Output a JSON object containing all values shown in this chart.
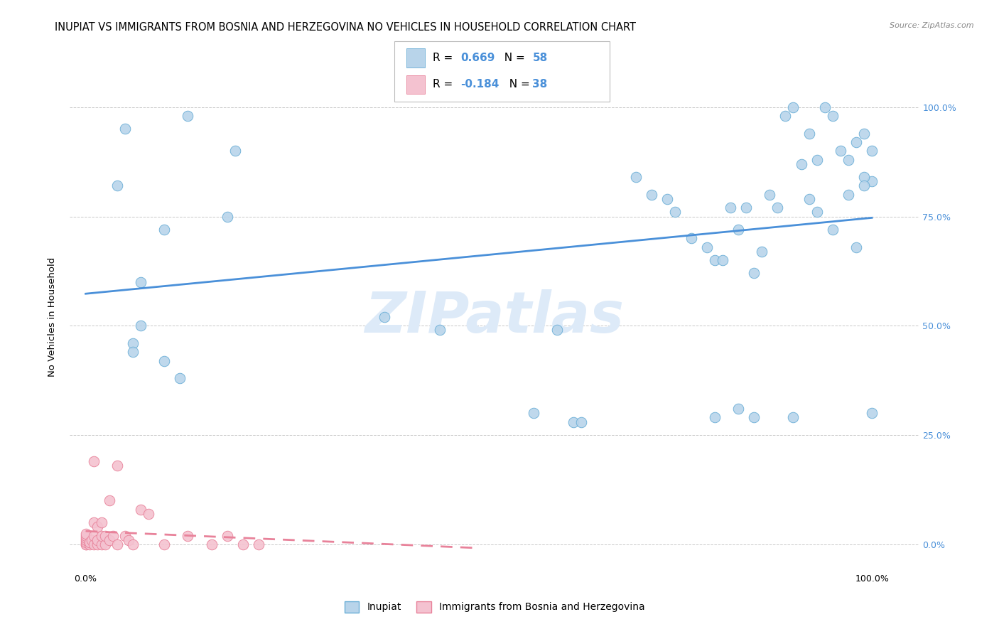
{
  "title": "INUPIAT VS IMMIGRANTS FROM BOSNIA AND HERZEGOVINA NO VEHICLES IN HOUSEHOLD CORRELATION CHART",
  "source": "Source: ZipAtlas.com",
  "ylabel": "No Vehicles in Household",
  "r_inupiat": 0.669,
  "n_inupiat": 58,
  "r_bosnia": -0.184,
  "n_bosnia": 38,
  "background_color": "#ffffff",
  "grid_color": "#c8c8c8",
  "inupiat_dot_color": "#b8d4ea",
  "inupiat_edge_color": "#6aaed6",
  "inupiat_line_color": "#4a90d9",
  "bosnia_dot_color": "#f4c2d0",
  "bosnia_edge_color": "#e8829a",
  "bosnia_line_color": "#e8829a",
  "right_tick_color": "#4a90d9",
  "watermark": "ZIPatlas",
  "watermark_color": "#ddeaf8",
  "ytick_values": [
    0.0,
    0.25,
    0.5,
    0.75,
    1.0
  ],
  "ytick_labels": [
    "0.0%",
    "25.0%",
    "50.0%",
    "75.0%",
    "100.0%"
  ],
  "xtick_values": [
    0.0,
    1.0
  ],
  "xtick_labels": [
    "0.0%",
    "100.0%"
  ],
  "inupiat_x": [
    0.05,
    0.13,
    0.04,
    0.19,
    0.18,
    0.1,
    0.07,
    0.07,
    0.06,
    0.06,
    0.1,
    0.12,
    0.38,
    0.45,
    0.6,
    0.57,
    0.62,
    0.63,
    0.7,
    0.72,
    0.74,
    0.75,
    0.77,
    0.79,
    0.8,
    0.81,
    0.82,
    0.83,
    0.84,
    0.85,
    0.86,
    0.87,
    0.88,
    0.89,
    0.9,
    0.91,
    0.92,
    0.93,
    0.94,
    0.95,
    0.96,
    0.97,
    0.98,
    0.99,
    1.0,
    1.0,
    0.8,
    0.83,
    0.85,
    0.9,
    0.92,
    0.93,
    0.95,
    0.97,
    0.98,
    0.99,
    0.99,
    1.0
  ],
  "inupiat_y": [
    0.95,
    0.98,
    0.82,
    0.9,
    0.75,
    0.72,
    0.6,
    0.5,
    0.46,
    0.44,
    0.42,
    0.38,
    0.52,
    0.49,
    0.49,
    0.3,
    0.28,
    0.28,
    0.84,
    0.8,
    0.79,
    0.76,
    0.7,
    0.68,
    0.65,
    0.65,
    0.77,
    0.72,
    0.77,
    0.62,
    0.67,
    0.8,
    0.77,
    0.98,
    1.0,
    0.87,
    0.94,
    0.88,
    1.0,
    0.98,
    0.9,
    0.88,
    0.92,
    0.94,
    0.83,
    0.3,
    0.29,
    0.31,
    0.29,
    0.29,
    0.79,
    0.76,
    0.72,
    0.8,
    0.68,
    0.84,
    0.82,
    0.9
  ],
  "bosnia_x": [
    0.0,
    0.0,
    0.0,
    0.0,
    0.0,
    0.0,
    0.0,
    0.005,
    0.005,
    0.008,
    0.01,
    0.01,
    0.01,
    0.01,
    0.015,
    0.015,
    0.015,
    0.02,
    0.02,
    0.02,
    0.025,
    0.025,
    0.03,
    0.03,
    0.035,
    0.04,
    0.04,
    0.05,
    0.055,
    0.06,
    0.07,
    0.08,
    0.1,
    0.13,
    0.16,
    0.18,
    0.2,
    0.22
  ],
  "bosnia_y": [
    0.0,
    0.0,
    0.005,
    0.01,
    0.015,
    0.02,
    0.025,
    0.0,
    0.005,
    0.01,
    0.0,
    0.02,
    0.05,
    0.19,
    0.0,
    0.01,
    0.04,
    0.0,
    0.02,
    0.05,
    0.0,
    0.02,
    0.01,
    0.1,
    0.02,
    0.0,
    0.18,
    0.02,
    0.01,
    0.0,
    0.08,
    0.07,
    0.0,
    0.02,
    0.0,
    0.02,
    0.0,
    0.0
  ],
  "legend_labels": [
    "Inupiat",
    "Immigrants from Bosnia and Herzegovina"
  ],
  "title_fontsize": 10.5,
  "axis_label_fontsize": 9.5,
  "tick_fontsize": 9,
  "legend_fontsize": 11
}
